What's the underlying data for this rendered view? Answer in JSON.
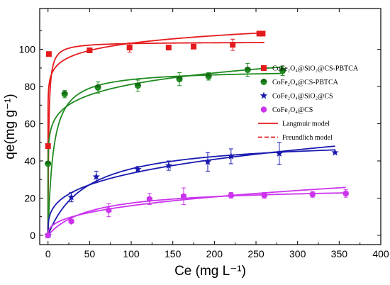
{
  "chart_data": {
    "type": "scatter",
    "xlabel": "Ce (mg L⁻¹)",
    "ylabel": "qe(mg g⁻¹)",
    "xlim": [
      -10,
      400
    ],
    "ylim": [
      -5,
      122
    ],
    "x_ticks": [
      0,
      50,
      100,
      150,
      200,
      250,
      300,
      350,
      400
    ],
    "y_ticks": [
      0,
      20,
      40,
      60,
      80,
      100
    ],
    "legend_position": "right",
    "series": [
      {
        "name": "CoFe₂O₄@SiO₂@CS-PBTCA",
        "marker": "square",
        "color": "#e41a1c",
        "x": [
          0,
          1,
          50,
          98,
          145,
          175,
          222,
          254,
          258
        ],
        "y": [
          48,
          97.5,
          99.5,
          101,
          101,
          101.5,
          102.5,
          108.5,
          108.5
        ],
        "err": [
          0,
          0,
          0,
          2.5,
          0,
          0,
          3,
          0,
          0
        ]
      },
      {
        "name": "CoFe₂O₄@CS-PBTCA",
        "marker": "half-circle",
        "color": "#1f8a1f",
        "x": [
          0,
          20,
          60,
          108,
          158,
          193,
          240,
          282
        ],
        "y": [
          38.5,
          76,
          79.5,
          80.5,
          84,
          85.5,
          89,
          88.5
        ],
        "err": [
          0,
          2,
          3,
          3,
          3.5,
          2,
          3.5,
          2.5
        ]
      },
      {
        "name": "CoFe₂O₄@SiO₂@CS",
        "marker": "star",
        "color": "#1a1ab0",
        "x": [
          0,
          28,
          58,
          108,
          145,
          192,
          220,
          278,
          345
        ],
        "y": [
          0,
          20.5,
          31.5,
          35.5,
          37.5,
          39.5,
          42.5,
          44,
          44.5
        ],
        "err": [
          0,
          2.5,
          3,
          1.5,
          2.5,
          5,
          4,
          6,
          0
        ]
      },
      {
        "name": "CoFe₂O₄@CS",
        "marker": "hexagon",
        "color": "#cc33ee",
        "x": [
          0,
          28,
          73,
          122,
          163,
          220,
          260,
          318,
          358
        ],
        "y": [
          0,
          7.5,
          13.5,
          19.5,
          21,
          21.5,
          21.5,
          22,
          22.5
        ],
        "err": [
          0,
          0,
          3.5,
          3,
          4.5,
          1.5,
          1.5,
          1.5,
          2
        ]
      }
    ],
    "model_legend": [
      {
        "name": "Langmuir model",
        "color": "#e41a1c",
        "style": "solid"
      },
      {
        "name": "Freundlich model",
        "color": "#e41a1c",
        "style": "dashed"
      }
    ],
    "fits": [
      {
        "series": 0,
        "langmuir": {
          "qm": 104,
          "KL": 1.2
        },
        "freundlich": {
          "KF": 80,
          "n": 18,
          "xmax": 260
        }
      },
      {
        "series": 1,
        "langmuir": {
          "qm": 89,
          "KL": 0.16
        },
        "freundlich": {
          "KF": 50,
          "n": 9.5,
          "xmax": 282
        }
      },
      {
        "series": 2,
        "langmuir": {
          "qm": 52,
          "KL": 0.022
        },
        "freundlich": {
          "KF": 8.6,
          "n": 3.4,
          "xmax": 345
        }
      },
      {
        "series": 3,
        "langmuir": {
          "qm": 26,
          "KL": 0.02
        },
        "freundlich": {
          "KF": 2.8,
          "n": 2.65,
          "xmax": 358
        }
      }
    ]
  }
}
